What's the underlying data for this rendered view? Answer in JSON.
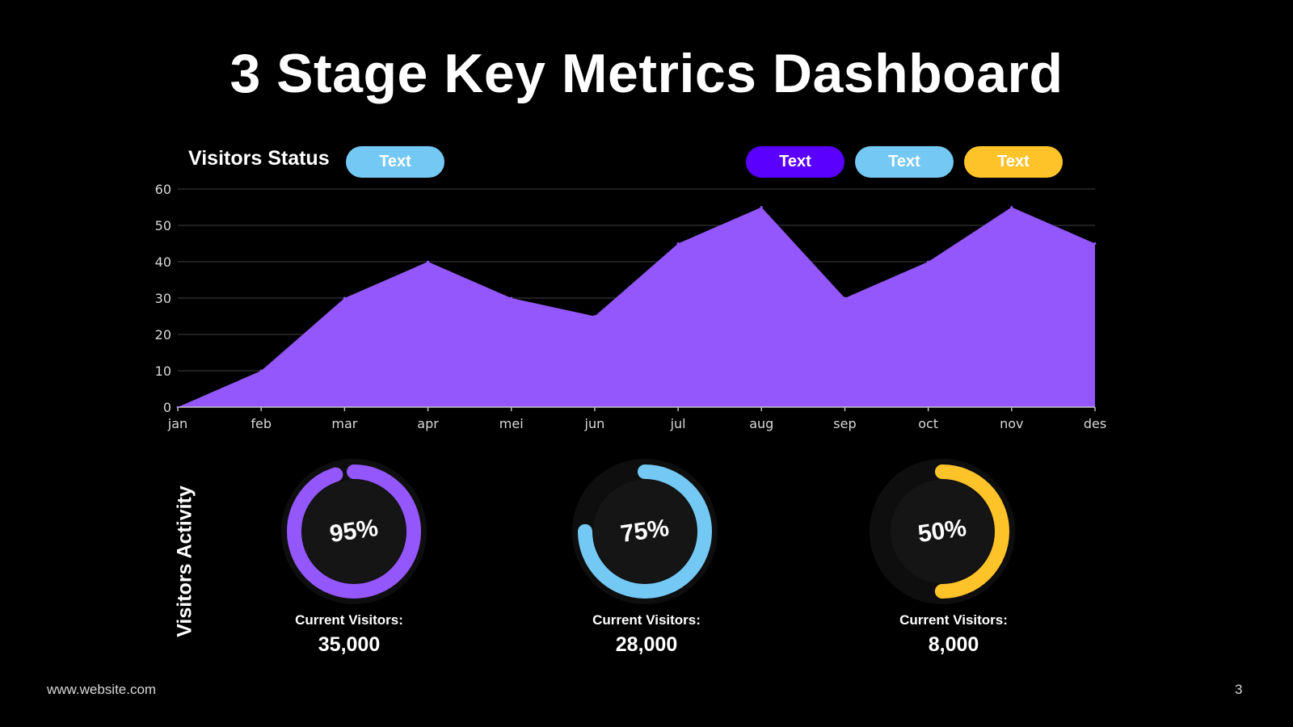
{
  "title": "3 Stage Key Metrics Dashboard",
  "visitors_status": {
    "label": "Visitors Status",
    "status_pill": {
      "label": "Text",
      "color": "#74c8f4"
    },
    "legend_pills": [
      {
        "label": "Text",
        "color": "#5a00ff"
      },
      {
        "label": "Text",
        "color": "#74c8f4"
      },
      {
        "label": "Text",
        "color": "#ffc32a"
      }
    ]
  },
  "visitors_activity": {
    "label": "Visitors Activity",
    "gauges": [
      {
        "percent_label": "95%",
        "fraction": 0.95,
        "color": "#9457fb",
        "caption": "Current Visitors:",
        "value": "35,000"
      },
      {
        "percent_label": "75%",
        "fraction": 0.75,
        "color": "#74c8f4",
        "caption": "Current Visitors:",
        "value": "28,000"
      },
      {
        "percent_label": "50%",
        "fraction": 0.5,
        "color": "#ffc32a",
        "caption": "Current Visitors:",
        "value": "8,000"
      }
    ]
  },
  "footer": {
    "website": "www.website.com",
    "page_number": "3"
  },
  "chart_data": {
    "type": "area",
    "categories": [
      "jan",
      "feb",
      "mar",
      "apr",
      "mei",
      "jun",
      "jul",
      "aug",
      "sep",
      "oct",
      "nov",
      "des"
    ],
    "series": [
      {
        "values": [
          0,
          10,
          30,
          40,
          30,
          25,
          45,
          55,
          30,
          40,
          55,
          45
        ],
        "color": "#9457fb"
      }
    ],
    "yticks": [
      "0",
      "10",
      "20",
      "30",
      "40",
      "50",
      "60"
    ],
    "ylim": [
      0,
      60
    ],
    "grid": true
  }
}
